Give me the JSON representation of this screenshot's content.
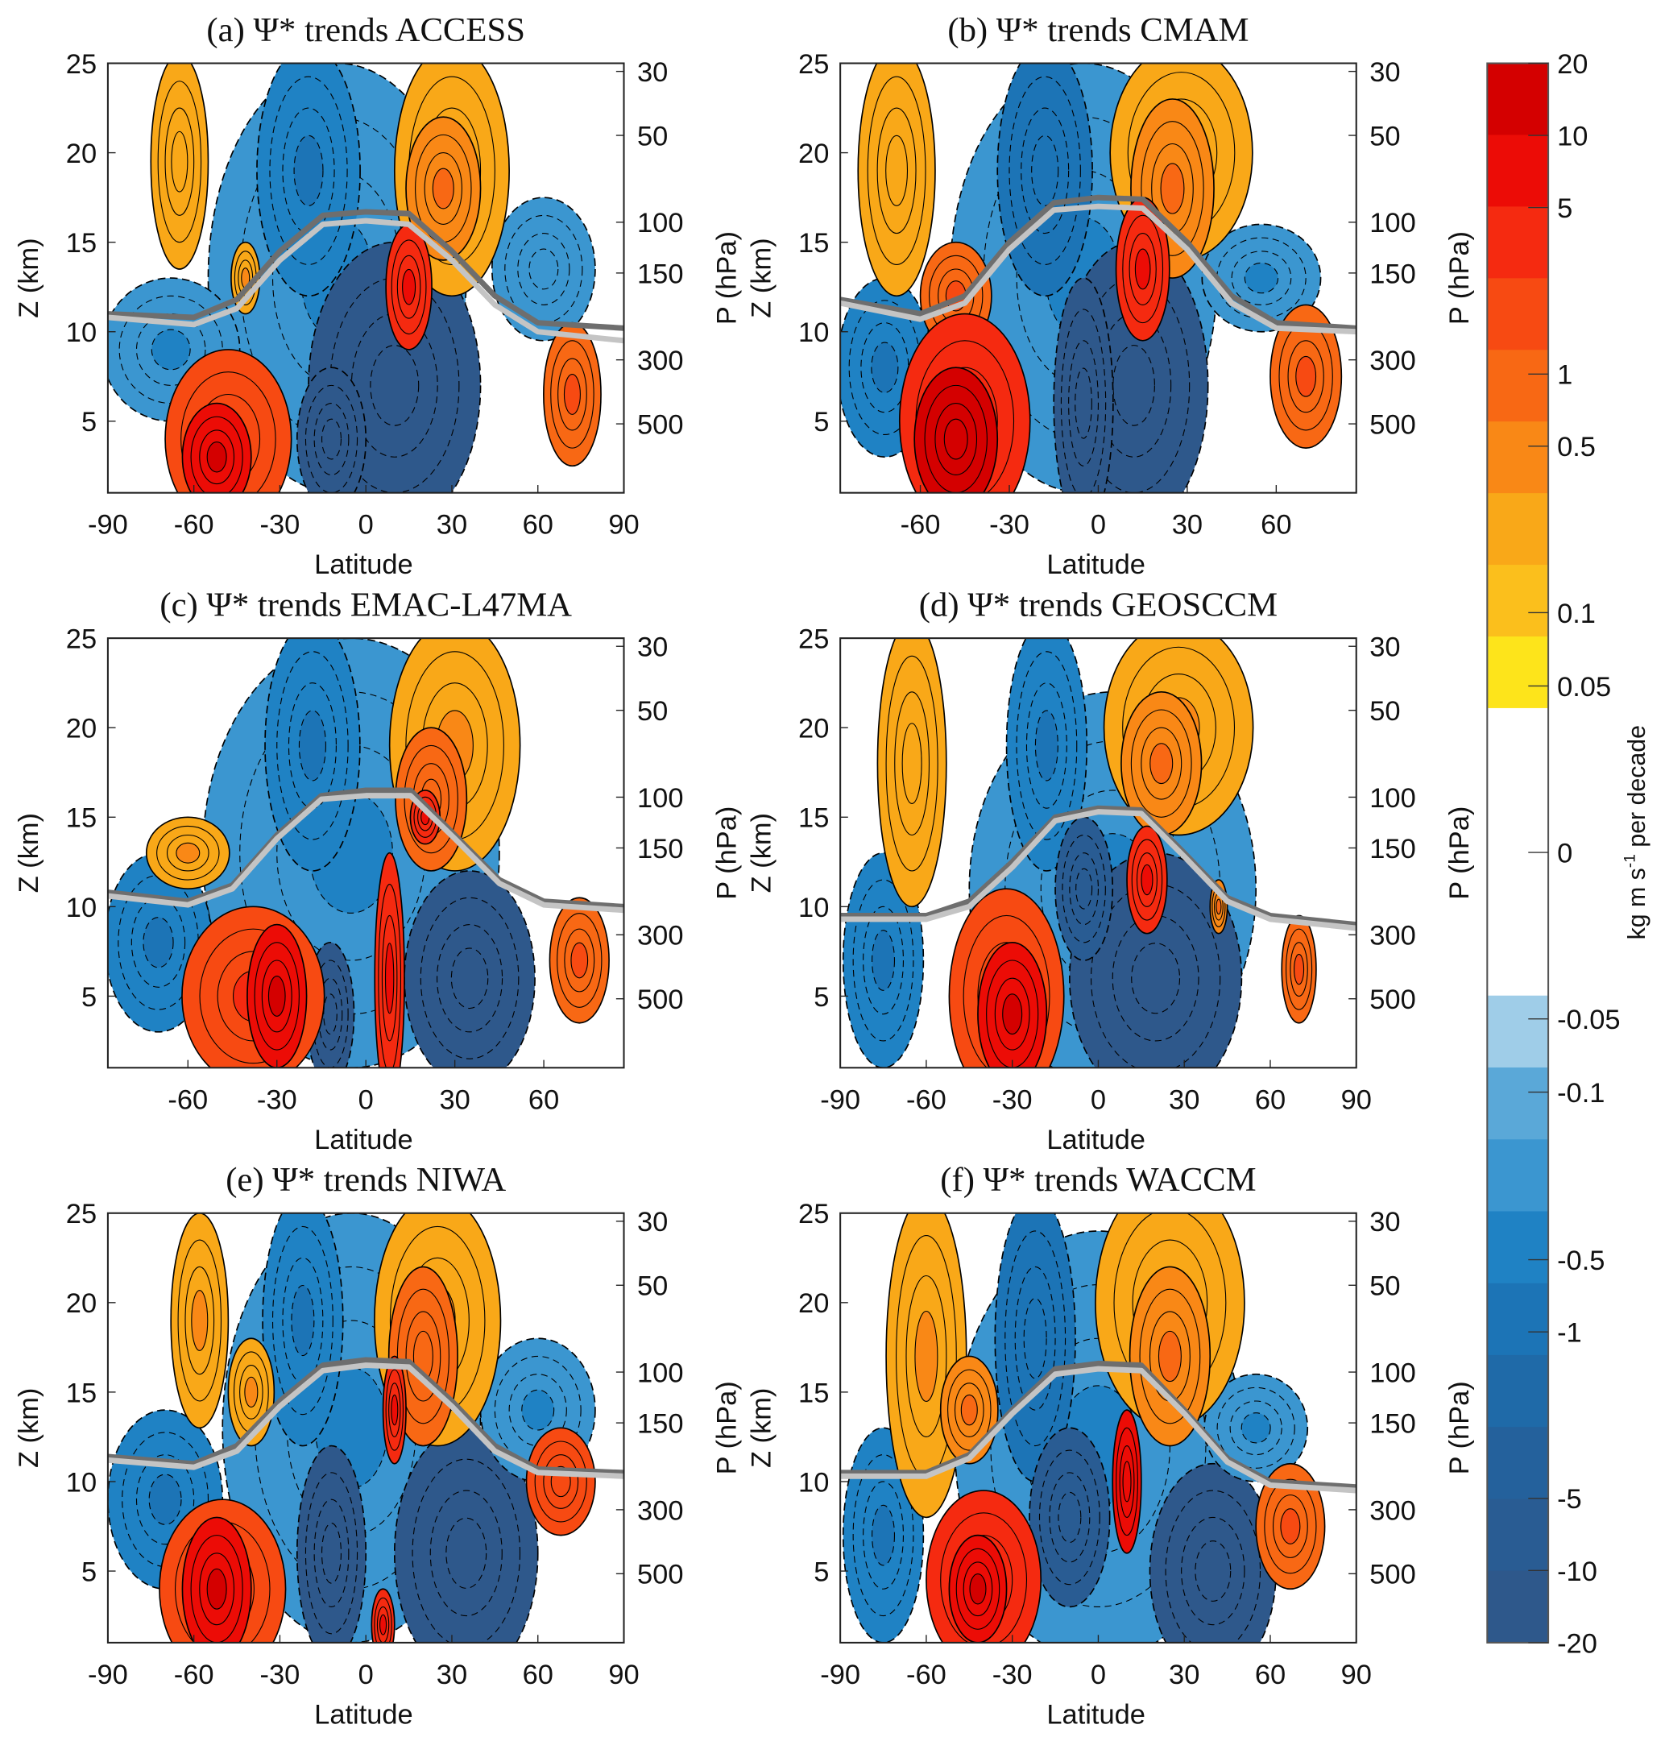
{
  "figure": {
    "colorbar": {
      "label": "kg m s",
      "label_sup": "-1",
      "label_tail": " per decade",
      "tick_labels": [
        "20",
        "10",
        "5",
        "1",
        "0.5",
        "0.1",
        "0.05",
        "0",
        "-0.05",
        "-0.1",
        "-0.5",
        "-1",
        "-5",
        "-10",
        "-20"
      ],
      "tick_values": [
        20,
        10,
        5,
        1,
        0.5,
        0.1,
        0.05,
        0,
        -0.05,
        -0.1,
        -0.5,
        -1,
        -5,
        -10,
        -20
      ],
      "warm_colors": [
        "#d40000",
        "#ec0c06",
        "#f52a10",
        "#f74a12",
        "#f86814",
        "#f98816",
        "#f9a818",
        "#fbbf1c",
        "#fde41b"
      ],
      "zero_color": "#ffffff",
      "cool_colors": [
        "#9fcde8",
        "#5aa8d8",
        "#3b96d0",
        "#1f82c4",
        "#1c74b6",
        "#1f6aa8",
        "#24619c",
        "#295c93",
        "#2e588b"
      ]
    },
    "tropopause_colors": {
      "dark": "#6e6e6e",
      "light": "#c4c4c4"
    }
  },
  "chart_data": [
    {
      "type": "heatmap",
      "title": "(a) Ψ* trends ACCESS",
      "xlabel": "Latitude",
      "ylabel": "Z (km)",
      "ylabel_right": "P (hPa)",
      "xlim": [
        -90,
        90
      ],
      "ylim": [
        1,
        25
      ],
      "xticks": [
        "-90",
        "-60",
        "-30",
        "0",
        "30",
        "60",
        "90"
      ],
      "yticks": [
        "5",
        "10",
        "15",
        "20",
        "25"
      ],
      "pticks": [
        "30",
        "50",
        "100",
        "150",
        "300",
        "500"
      ],
      "features": [
        [
          -10,
          13,
          45,
          12,
          -0.2
        ],
        [
          -68,
          9,
          24,
          4,
          -0.3
        ],
        [
          -20,
          19,
          18,
          7,
          -0.5
        ],
        [
          10,
          7,
          30,
          8,
          -10
        ],
        [
          -12,
          4,
          12,
          4,
          -10
        ],
        [
          62,
          13.5,
          18,
          4,
          -0.15
        ],
        [
          -65,
          19.5,
          10,
          6,
          0.15
        ],
        [
          -42,
          13,
          5,
          2,
          0.3
        ],
        [
          30,
          19,
          20,
          7,
          0.2
        ],
        [
          27,
          18,
          13,
          4,
          0.6
        ],
        [
          15,
          12.5,
          8,
          3.5,
          3
        ],
        [
          -48,
          4,
          22,
          5,
          2
        ],
        [
          -52,
          3,
          12,
          3,
          8
        ],
        [
          72,
          6.5,
          10,
          4,
          1
        ]
      ],
      "tropopause_lat": [
        -90,
        -60,
        -45,
        -30,
        -15,
        0,
        15,
        30,
        45,
        60,
        90
      ],
      "tropopause_dark": [
        11,
        10.8,
        11.8,
        14.5,
        16.5,
        16.7,
        16.6,
        14.5,
        12,
        10.5,
        10.2
      ],
      "tropopause_light": [
        10.8,
        10.4,
        11.3,
        14,
        16,
        16.2,
        16,
        14,
        11.5,
        10,
        9.5
      ]
    },
    {
      "type": "heatmap",
      "title": "(b) Ψ* trends CMAM",
      "xlabel": "Latitude",
      "ylabel": "Z (km)",
      "ylabel_right": "P (hPa)",
      "xlim": [
        -87,
        87
      ],
      "ylim": [
        1,
        25
      ],
      "xticks": [
        "-60",
        "-30",
        "0",
        "30",
        "60"
      ],
      "yticks": [
        "5",
        "10",
        "15",
        "20",
        "25"
      ],
      "pticks": [
        "30",
        "50",
        "100",
        "150",
        "300",
        "500"
      ],
      "features": [
        [
          -5,
          13,
          45,
          12,
          -0.3
        ],
        [
          -72,
          8,
          16,
          5,
          -0.5
        ],
        [
          -18,
          19,
          16,
          7,
          -0.8
        ],
        [
          12,
          7,
          25,
          8,
          -10
        ],
        [
          -5,
          6,
          10,
          7,
          -10
        ],
        [
          55,
          13,
          20,
          3,
          -0.2
        ],
        [
          -68,
          19,
          13,
          7,
          0.15
        ],
        [
          -48,
          12,
          12,
          3,
          1
        ],
        [
          28,
          20,
          24,
          6,
          0.2
        ],
        [
          25,
          18,
          14,
          5,
          0.5
        ],
        [
          15,
          13.5,
          9,
          4,
          4
        ],
        [
          -45,
          5,
          22,
          6,
          3
        ],
        [
          -48,
          4,
          14,
          4,
          12
        ],
        [
          70,
          7.5,
          12,
          4,
          1.2
        ]
      ],
      "tropopause_lat": [
        -87,
        -60,
        -45,
        -30,
        -15,
        0,
        15,
        30,
        45,
        60,
        87
      ],
      "tropopause_dark": [
        11.8,
        11,
        12,
        15,
        17.2,
        17.5,
        17.4,
        15,
        12,
        10.5,
        10.2
      ],
      "tropopause_light": [
        11.6,
        10.7,
        11.6,
        14.6,
        16.8,
        17,
        16.9,
        14.6,
        11.6,
        10.2,
        10
      ]
    },
    {
      "type": "heatmap",
      "title": "(c) Ψ* trends EMAC-L47MA",
      "xlabel": "Latitude",
      "ylabel": "Z (km)",
      "ylabel_right": "P (hPa)",
      "xlim": [
        -87,
        87
      ],
      "ylim": [
        1,
        25
      ],
      "xticks": [
        "-60",
        "-30",
        "0",
        "30",
        "60"
      ],
      "yticks": [
        "5",
        "10",
        "15",
        "20",
        "25"
      ],
      "pticks": [
        "30",
        "50",
        "100",
        "150",
        "300",
        "500"
      ],
      "features": [
        [
          -5,
          13,
          50,
          12,
          -0.3
        ],
        [
          -70,
          8,
          18,
          5,
          -0.5
        ],
        [
          -18,
          19,
          16,
          7,
          -0.6
        ],
        [
          35,
          6,
          22,
          6,
          -10
        ],
        [
          -12,
          4,
          8,
          4,
          -10
        ],
        [
          -60,
          13,
          14,
          2,
          0.2
        ],
        [
          30,
          19,
          22,
          7,
          0.2
        ],
        [
          22,
          16,
          12,
          4,
          0.8
        ],
        [
          20,
          15,
          5,
          1.5,
          3
        ],
        [
          8,
          6,
          5,
          7,
          4
        ],
        [
          -38,
          5,
          24,
          5,
          2
        ],
        [
          -30,
          5,
          10,
          4,
          8
        ],
        [
          72,
          7,
          10,
          3.5,
          1
        ]
      ],
      "tropopause_lat": [
        -87,
        -60,
        -45,
        -30,
        -15,
        0,
        15,
        30,
        45,
        60,
        87
      ],
      "tropopause_dark": [
        10.8,
        10.3,
        11.2,
        14,
        16.2,
        16.5,
        16.5,
        14,
        11.5,
        10.3,
        10
      ],
      "tropopause_light": [
        10.6,
        10.1,
        11,
        13.8,
        16,
        16.2,
        16.2,
        13.8,
        11.3,
        10.1,
        9.8
      ]
    },
    {
      "type": "heatmap",
      "title": "(d) Ψ* trends GEOSCCM",
      "xlabel": "Latitude",
      "ylabel": "Z (km)",
      "ylabel_right": "P (hPa)",
      "xlim": [
        -90,
        90
      ],
      "ylim": [
        1,
        25
      ],
      "xticks": [
        "-90",
        "-60",
        "-30",
        "0",
        "30",
        "60",
        "90"
      ],
      "yticks": [
        "5",
        "10",
        "15",
        "20",
        "25"
      ],
      "pticks": [
        "30",
        "50",
        "100",
        "150",
        "300",
        "500"
      ],
      "features": [
        [
          5,
          11,
          50,
          11,
          -0.3
        ],
        [
          -75,
          7,
          14,
          6,
          -0.5
        ],
        [
          -18,
          19,
          14,
          7,
          -0.6
        ],
        [
          20,
          6,
          30,
          7,
          -10
        ],
        [
          -5,
          11,
          10,
          4,
          -5
        ],
        [
          -65,
          18,
          12,
          8,
          0.15
        ],
        [
          28,
          20,
          26,
          6,
          0.2
        ],
        [
          22,
          18,
          14,
          4,
          0.5
        ],
        [
          17,
          11.5,
          7,
          3,
          4
        ],
        [
          -32,
          5,
          20,
          6,
          2
        ],
        [
          -30,
          4,
          12,
          4,
          6
        ],
        [
          70,
          6.5,
          6,
          3,
          1
        ],
        [
          42,
          10,
          3,
          1.5,
          0.5
        ]
      ],
      "tropopause_lat": [
        -90,
        -60,
        -45,
        -30,
        -15,
        0,
        15,
        30,
        45,
        60,
        90
      ],
      "tropopause_dark": [
        9.5,
        9.5,
        10.3,
        12.5,
        15,
        15.5,
        15.4,
        13,
        10.5,
        9.5,
        9
      ],
      "tropopause_light": [
        9.3,
        9.3,
        10,
        12.2,
        14.8,
        15.3,
        15.2,
        12.8,
        10.3,
        9.3,
        8.8
      ]
    },
    {
      "type": "heatmap",
      "title": "(e) Ψ* trends NIWA",
      "xlabel": "Latitude",
      "ylabel": "Z (km)",
      "ylabel_right": "P (hPa)",
      "xlim": [
        -90,
        90
      ],
      "ylim": [
        1,
        25
      ],
      "xticks": [
        "-90",
        "-60",
        "-30",
        "0",
        "30",
        "60",
        "90"
      ],
      "yticks": [
        "5",
        "10",
        "15",
        "20",
        "25"
      ],
      "pticks": [
        "30",
        "50",
        "100",
        "150",
        "300",
        "500"
      ],
      "features": [
        [
          -5,
          13,
          45,
          12,
          -0.3
        ],
        [
          -70,
          9,
          20,
          5,
          -0.4
        ],
        [
          -22,
          19,
          14,
          7,
          -0.6
        ],
        [
          35,
          6,
          25,
          7,
          -10
        ],
        [
          -12,
          6,
          12,
          6,
          -10
        ],
        [
          60,
          14,
          20,
          4,
          -0.2
        ],
        [
          -58,
          19,
          10,
          6,
          0.2
        ],
        [
          -40,
          15,
          8,
          3,
          0.3
        ],
        [
          25,
          19,
          22,
          7,
          0.3
        ],
        [
          20,
          17,
          12,
          5,
          0.8
        ],
        [
          10,
          14,
          4,
          3,
          4
        ],
        [
          -50,
          4,
          22,
          5,
          2
        ],
        [
          -52,
          4,
          12,
          4,
          6
        ],
        [
          6,
          2,
          4,
          2,
          3
        ],
        [
          68,
          10,
          12,
          3,
          1.5
        ]
      ],
      "tropopause_lat": [
        -90,
        -60,
        -45,
        -30,
        -15,
        0,
        15,
        30,
        45,
        60,
        90
      ],
      "tropopause_dark": [
        11.4,
        11,
        12,
        14.5,
        16.5,
        16.8,
        16.7,
        14.5,
        12,
        10.7,
        10.5
      ],
      "tropopause_light": [
        11.2,
        10.8,
        11.7,
        14.2,
        16.2,
        16.5,
        16.4,
        14.2,
        11.7,
        10.5,
        10.3
      ]
    },
    {
      "type": "heatmap",
      "title": "(f) Ψ* trends WACCM",
      "xlabel": "Latitude",
      "ylabel": "Z (km)",
      "ylabel_right": "P (hPa)",
      "xlim": [
        -90,
        90
      ],
      "ylim": [
        1,
        25
      ],
      "xticks": [
        "-90",
        "-60",
        "-30",
        "0",
        "30",
        "60",
        "90"
      ],
      "yticks": [
        "5",
        "10",
        "15",
        "20",
        "25"
      ],
      "pticks": [
        "30",
        "50",
        "100",
        "150",
        "300",
        "500"
      ],
      "features": [
        [
          0,
          12,
          50,
          12,
          -0.3
        ],
        [
          -75,
          7,
          14,
          6,
          -0.5
        ],
        [
          -22,
          18,
          14,
          8,
          -0.7
        ],
        [
          40,
          5,
          22,
          6,
          -10
        ],
        [
          -10,
          8,
          14,
          5,
          -5
        ],
        [
          55,
          13,
          18,
          3,
          -0.2
        ],
        [
          -60,
          17,
          14,
          9,
          0.2
        ],
        [
          -45,
          14,
          10,
          3,
          0.5
        ],
        [
          25,
          20,
          26,
          7,
          0.25
        ],
        [
          25,
          17,
          14,
          5,
          0.6
        ],
        [
          10,
          10,
          5,
          4,
          5
        ],
        [
          -40,
          4.5,
          20,
          5,
          3
        ],
        [
          -42,
          4,
          10,
          3,
          8
        ],
        [
          67,
          7.5,
          12,
          3.5,
          1.2
        ]
      ],
      "tropopause_lat": [
        -90,
        -60,
        -45,
        -30,
        -15,
        0,
        15,
        30,
        45,
        60,
        90
      ],
      "tropopause_dark": [
        10.5,
        10.5,
        11.5,
        14,
        16.3,
        16.6,
        16.5,
        14,
        11.3,
        10,
        9.7
      ],
      "tropopause_light": [
        10.3,
        10.3,
        11.3,
        13.8,
        16,
        16.3,
        16.2,
        13.8,
        11.1,
        9.8,
        9.5
      ]
    }
  ]
}
